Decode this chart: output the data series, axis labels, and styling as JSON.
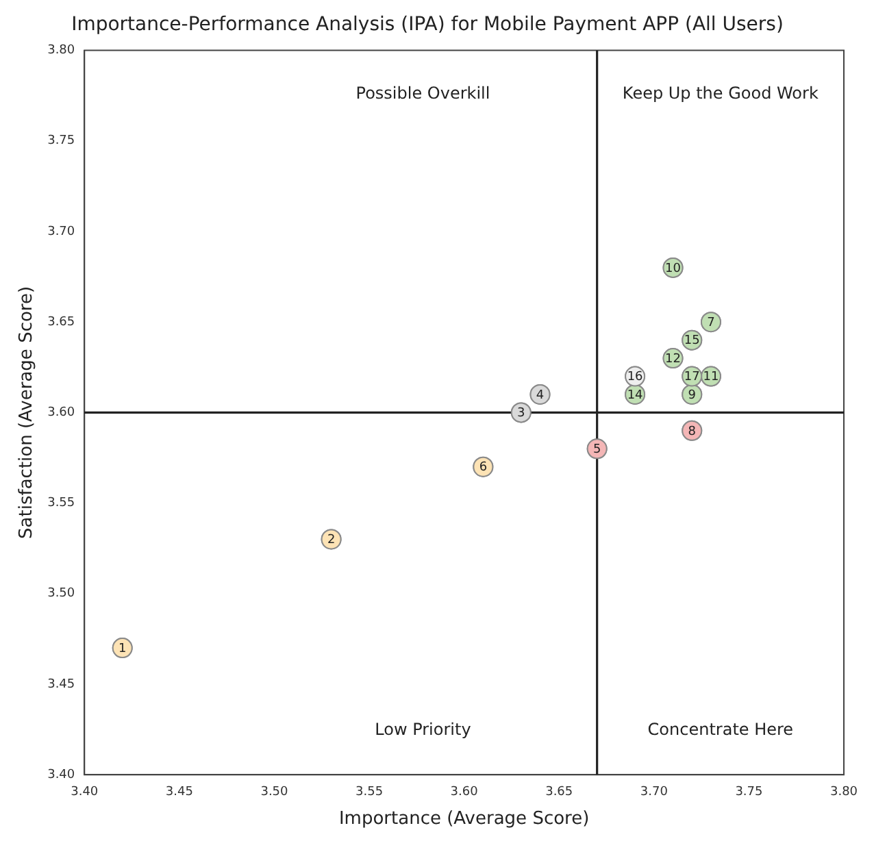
{
  "chart_data": {
    "type": "scatter",
    "title": "Importance-Performance Analysis (IPA) for Mobile Payment APP (All Users)",
    "xlabel": "Importance (Average Score)",
    "ylabel": "Satisfaction (Average Score)",
    "x": [
      3.42,
      3.53,
      3.63,
      3.64,
      3.67,
      3.61,
      3.73,
      3.72,
      3.72,
      3.71,
      3.73,
      3.71,
      3.69,
      3.72,
      3.69,
      3.72
    ],
    "series": [
      {
        "values": [
          3.47,
          3.53,
          3.6,
          3.61,
          3.58,
          3.57,
          3.65,
          3.59,
          3.61,
          3.68,
          3.62,
          3.63,
          3.61,
          3.64,
          3.62,
          3.62
        ],
        "colors": [
          "#fde3b5",
          "#fde3b5",
          "#d9d9d9",
          "#d9d9d9",
          "#f4b6b6",
          "#fde3b5",
          "#c0dfb3",
          "#f4b6b6",
          "#c0dfb3",
          "#c0dfb3",
          "#c0dfb3",
          "#c0dfb3",
          "#c0dfb3",
          "#c0dfb3",
          "#eeeeee",
          "#c0dfb3"
        ]
      }
    ],
    "marker": "circle",
    "grid": false,
    "legend": false,
    "xlim": [
      3.4,
      3.8
    ],
    "xticks": [
      {
        "value": 3.4,
        "label": "3.40"
      },
      {
        "value": 3.45,
        "label": "3.45"
      },
      {
        "value": 3.5,
        "label": "3.50"
      },
      {
        "value": 3.55,
        "label": "3.55"
      },
      {
        "value": 3.6,
        "label": "3.60"
      },
      {
        "value": 3.65,
        "label": "3.65"
      },
      {
        "value": 3.7,
        "label": "3.70"
      },
      {
        "value": 3.75,
        "label": "3.75"
      },
      {
        "value": 3.8,
        "label": "3.80"
      }
    ],
    "ylim": [
      3.4,
      3.8
    ],
    "yticks": [
      {
        "value": 3.4,
        "label": "3.40"
      },
      {
        "value": 3.45,
        "label": "3.45"
      },
      {
        "value": 3.5,
        "label": "3.50"
      },
      {
        "value": 3.55,
        "label": "3.55"
      },
      {
        "value": 3.6,
        "label": "3.60"
      },
      {
        "value": 3.65,
        "label": "3.65"
      },
      {
        "value": 3.7,
        "label": "3.70"
      },
      {
        "value": 3.75,
        "label": "3.75"
      },
      {
        "value": 3.8,
        "label": "3.80"
      }
    ],
    "ref_lines": [
      {
        "axis": "x",
        "value": 3.67,
        "color": "#222222"
      },
      {
        "axis": "y",
        "value": 3.6,
        "color": "#222222"
      }
    ],
    "annotations": [
      "Possible Overkill",
      "Keep Up the Good Work",
      "Low Priority",
      "Concentrate Here",
      {
        "text": "1",
        "x": 3.42,
        "y": 3.47
      },
      {
        "text": "2",
        "x": 3.53,
        "y": 3.53
      },
      {
        "text": "3",
        "x": 3.63,
        "y": 3.6
      },
      {
        "text": "4",
        "x": 3.64,
        "y": 3.61
      },
      {
        "text": "5",
        "x": 3.67,
        "y": 3.58
      },
      {
        "text": "6",
        "x": 3.61,
        "y": 3.57
      },
      {
        "text": "7",
        "x": 3.73,
        "y": 3.65
      },
      {
        "text": "8",
        "x": 3.72,
        "y": 3.59
      },
      {
        "text": "9",
        "x": 3.72,
        "y": 3.61
      },
      {
        "text": "10",
        "x": 3.71,
        "y": 3.68
      },
      {
        "text": "11",
        "x": 3.73,
        "y": 3.62
      },
      {
        "text": "12",
        "x": 3.71,
        "y": 3.63
      },
      {
        "text": "14",
        "x": 3.69,
        "y": 3.61
      },
      {
        "text": "15",
        "x": 3.72,
        "y": 3.64
      },
      {
        "text": "16",
        "x": 3.69,
        "y": 3.62
      },
      {
        "text": "17",
        "x": 3.72,
        "y": 3.62
      }
    ]
  }
}
